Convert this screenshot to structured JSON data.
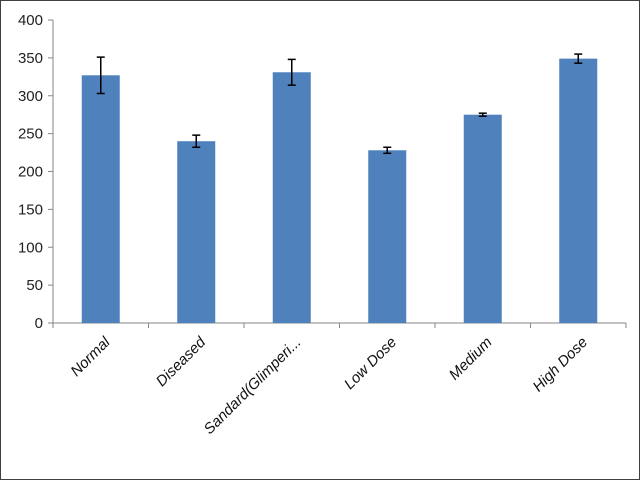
{
  "chart_data": {
    "type": "bar",
    "title": "",
    "xlabel": "",
    "ylabel": "",
    "categories": [
      "Normal",
      "Diseased",
      "Sandard(Glimperi...",
      "Low Dose",
      "Medium",
      "High Dose"
    ],
    "series": [
      {
        "values": [
          327,
          240,
          331,
          228,
          275,
          349
        ],
        "errors": [
          24,
          8,
          17,
          4,
          2,
          6
        ]
      }
    ],
    "ylim": [
      0,
      400
    ],
    "yticks": [
      0,
      50,
      100,
      150,
      200,
      250,
      300,
      350,
      400
    ],
    "grid": false,
    "legend": "none",
    "bar_color": "#4f81bd",
    "error_color": "#000000"
  }
}
